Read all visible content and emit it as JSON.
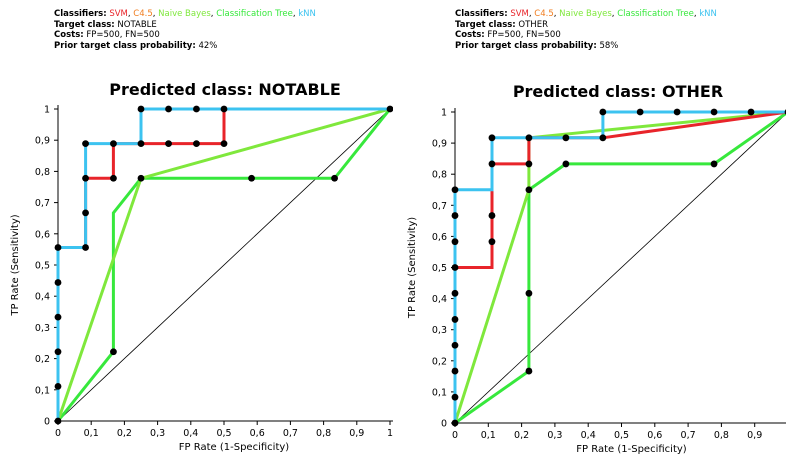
{
  "colors": {
    "SVM": "#e8242a",
    "C4.5": "#f07c1e",
    "Naive Bayes": "#7fe83c",
    "Classification Tree": "#37e83c",
    "kNN": "#3cc3f0"
  },
  "panels": [
    {
      "info": {
        "classifiers_label": "Classifiers:",
        "classifiers": [
          "SVM",
          "C4.5",
          "Naive Bayes",
          "Classification Tree",
          "kNN"
        ],
        "target_label": "Target class:",
        "target_value": "NOTABLE",
        "costs_label": "Costs:",
        "costs_value": "FP=500, FN=500",
        "prior_label": "Prior target class probability:",
        "prior_value": "42%"
      }
    },
    {
      "info": {
        "classifiers_label": "Classifiers:",
        "classifiers": [
          "SVM",
          "C4.5",
          "Naive Bayes",
          "Classification Tree",
          "kNN"
        ],
        "target_label": "Target class:",
        "target_value": "OTHER",
        "costs_label": "Costs:",
        "costs_value": "FP=500, FN=500",
        "prior_label": "Prior target class probability:",
        "prior_value": "58%"
      }
    }
  ],
  "chart_data": [
    {
      "type": "line",
      "title": "Predicted class: NOTABLE",
      "xlabel": "FP Rate (1-Specificity)",
      "ylabel": "TP Rate (Sensitivity)",
      "xlim": [
        0,
        1
      ],
      "ylim": [
        0,
        1
      ],
      "xticks": [
        "0",
        "0,1",
        "0,2",
        "0,3",
        "0,4",
        "0,5",
        "0,6",
        "0,7",
        "0,8",
        "0,9",
        "1"
      ],
      "yticks": [
        "0",
        "0,1",
        "0,2",
        "0,3",
        "0,4",
        "0,5",
        "0,6",
        "0,7",
        "0,8",
        "0,9",
        "1"
      ],
      "grid": false,
      "diagonal": true,
      "series": [
        {
          "name": "Classification Tree",
          "color": "#37e83c",
          "points": [
            [
              0,
              0
            ],
            [
              0.167,
              0.222
            ],
            [
              0.167,
              0.667
            ],
            [
              0.25,
              0.778
            ],
            [
              0.583,
              0.778
            ],
            [
              0.833,
              0.778
            ],
            [
              1,
              1
            ]
          ]
        },
        {
          "name": "Naive Bayes",
          "color": "#7fe83c",
          "points": [
            [
              0,
              0
            ],
            [
              0.25,
              0.778
            ],
            [
              1,
              1
            ]
          ]
        },
        {
          "name": "SVM",
          "color": "#e8242a",
          "points": [
            [
              0,
              0
            ],
            [
              0,
              0.556
            ],
            [
              0.083,
              0.556
            ],
            [
              0.083,
              0.778
            ],
            [
              0.167,
              0.778
            ],
            [
              0.167,
              0.889
            ],
            [
              0.25,
              0.889
            ],
            [
              0.333,
              0.889
            ],
            [
              0.417,
              0.889
            ],
            [
              0.5,
              0.889
            ],
            [
              0.5,
              1
            ],
            [
              1,
              1
            ]
          ]
        },
        {
          "name": "kNN",
          "color": "#3cc3f0",
          "points": [
            [
              0,
              0
            ],
            [
              0,
              0.111
            ],
            [
              0,
              0.222
            ],
            [
              0,
              0.333
            ],
            [
              0,
              0.444
            ],
            [
              0,
              0.556
            ],
            [
              0.083,
              0.556
            ],
            [
              0.083,
              0.667
            ],
            [
              0.083,
              0.778
            ],
            [
              0.083,
              0.889
            ],
            [
              0.167,
              0.889
            ],
            [
              0.25,
              0.889
            ],
            [
              0.25,
              1
            ],
            [
              0.333,
              1
            ],
            [
              0.417,
              1
            ],
            [
              0.5,
              1
            ],
            [
              1,
              1
            ]
          ]
        }
      ],
      "markers": [
        [
          0,
          0
        ],
        [
          0,
          0.111
        ],
        [
          0,
          0.222
        ],
        [
          0,
          0.333
        ],
        [
          0,
          0.444
        ],
        [
          0,
          0.556
        ],
        [
          0.083,
          0.556
        ],
        [
          0.083,
          0.667
        ],
        [
          0.083,
          0.778
        ],
        [
          0.083,
          0.889
        ],
        [
          0.167,
          0.222
        ],
        [
          0.167,
          0.778
        ],
        [
          0.167,
          0.889
        ],
        [
          0.25,
          0.778
        ],
        [
          0.25,
          0.889
        ],
        [
          0.25,
          1
        ],
        [
          0.333,
          0.889
        ],
        [
          0.333,
          1
        ],
        [
          0.417,
          0.889
        ],
        [
          0.417,
          1
        ],
        [
          0.5,
          0.889
        ],
        [
          0.5,
          1
        ],
        [
          0.583,
          0.778
        ],
        [
          0.833,
          0.778
        ],
        [
          1,
          1
        ]
      ]
    },
    {
      "type": "line",
      "title": "Predicted class: OTHER",
      "xlabel": "FP Rate (1-Specificity)",
      "ylabel": "TP Rate (Sensitivity)",
      "xlim": [
        0,
        1
      ],
      "ylim": [
        0,
        1
      ],
      "xticks": [
        "0",
        "0,1",
        "0,2",
        "0,3",
        "0,4",
        "0,5",
        "0,6",
        "0,7",
        "0,8",
        "0,9"
      ],
      "yticks": [
        "0",
        "0,1",
        "0,2",
        "0,3",
        "0,4",
        "0,5",
        "0,6",
        "0,7",
        "0,8",
        "0,9",
        "1"
      ],
      "grid": false,
      "diagonal": true,
      "series": [
        {
          "name": "Classification Tree",
          "color": "#37e83c",
          "points": [
            [
              0,
              0
            ],
            [
              0.222,
              0.167
            ],
            [
              0.222,
              0.75
            ],
            [
              0.333,
              0.833
            ],
            [
              0.778,
              0.833
            ],
            [
              1,
              1
            ]
          ]
        },
        {
          "name": "Naive Bayes",
          "color": "#7fe83c",
          "points": [
            [
              0,
              0
            ],
            [
              0.222,
              0.75
            ],
            [
              0.222,
              0.917
            ],
            [
              1,
              1
            ]
          ]
        },
        {
          "name": "SVM",
          "color": "#e8242a",
          "points": [
            [
              0,
              0
            ],
            [
              0,
              0.5
            ],
            [
              0.111,
              0.5
            ],
            [
              0.111,
              0.583
            ],
            [
              0.111,
              0.667
            ],
            [
              0.111,
              0.75
            ],
            [
              0.111,
              0.833
            ],
            [
              0.222,
              0.833
            ],
            [
              0.222,
              0.917
            ],
            [
              0.333,
              0.917
            ],
            [
              0.444,
              0.917
            ],
            [
              1,
              1
            ]
          ]
        },
        {
          "name": "kNN",
          "color": "#3cc3f0",
          "points": [
            [
              0,
              0
            ],
            [
              0,
              0.083
            ],
            [
              0,
              0.167
            ],
            [
              0,
              0.25
            ],
            [
              0,
              0.333
            ],
            [
              0,
              0.417
            ],
            [
              0,
              0.5
            ],
            [
              0,
              0.583
            ],
            [
              0,
              0.667
            ],
            [
              0,
              0.75
            ],
            [
              0.111,
              0.75
            ],
            [
              0.111,
              0.917
            ],
            [
              0.222,
              0.917
            ],
            [
              0.333,
              0.917
            ],
            [
              0.444,
              0.917
            ],
            [
              0.444,
              1
            ],
            [
              0.556,
              1
            ],
            [
              0.667,
              1
            ],
            [
              0.778,
              1
            ],
            [
              0.889,
              1
            ],
            [
              1,
              1
            ]
          ]
        }
      ],
      "markers": [
        [
          0,
          0
        ],
        [
          0,
          0.083
        ],
        [
          0,
          0.167
        ],
        [
          0,
          0.25
        ],
        [
          0,
          0.333
        ],
        [
          0,
          0.417
        ],
        [
          0,
          0.5
        ],
        [
          0,
          0.583
        ],
        [
          0,
          0.667
        ],
        [
          0,
          0.75
        ],
        [
          0.111,
          0.583
        ],
        [
          0.111,
          0.667
        ],
        [
          0.111,
          0.833
        ],
        [
          0.111,
          0.917
        ],
        [
          0.222,
          0.167
        ],
        [
          0.222,
          0.417
        ],
        [
          0.222,
          0.75
        ],
        [
          0.222,
          0.833
        ],
        [
          0.222,
          0.917
        ],
        [
          0.333,
          0.833
        ],
        [
          0.333,
          0.917
        ],
        [
          0.444,
          0.917
        ],
        [
          0.444,
          1
        ],
        [
          0.556,
          1
        ],
        [
          0.667,
          1
        ],
        [
          0.778,
          0.833
        ],
        [
          0.778,
          1
        ],
        [
          0.889,
          1
        ],
        [
          1,
          1
        ]
      ]
    }
  ]
}
